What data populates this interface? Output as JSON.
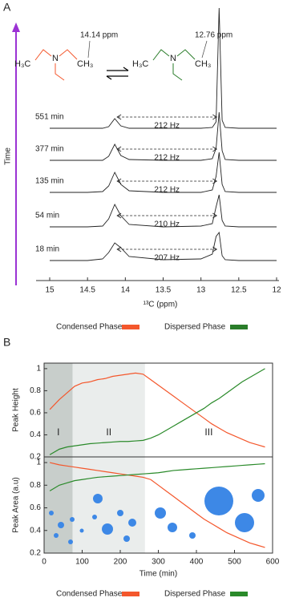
{
  "chart_data": [
    {
      "type": "spectrum",
      "panel_label": "A",
      "x_label": "¹³C (ppm)",
      "y_label": "Time",
      "xlim": [
        15,
        12
      ],
      "xticks": [
        15,
        14.5,
        14,
        13.5,
        13,
        12.5,
        12
      ],
      "molecule_labels": {
        "left": "H₃C",
        "center": "N",
        "right": "CH₃"
      },
      "annotations": [
        {
          "text": "14.14 ppm",
          "x": 14.14
        },
        {
          "text": "12.76 ppm",
          "x": 12.76
        }
      ],
      "legend": [
        {
          "name": "Condensed Phase",
          "color": "#f4572c"
        },
        {
          "name": "Dispersed Phase",
          "color": "#2a7d2a"
        }
      ],
      "x": [
        15,
        14.5,
        14.3,
        14.22,
        14.14,
        14.06,
        13.95,
        13.5,
        13,
        12.85,
        12.8,
        12.76,
        12.72,
        12.68,
        12.5,
        12
      ],
      "series": [
        {
          "name": "551 min",
          "color": "#222222",
          "splitting_label": "212 Hz",
          "values": [
            0,
            0,
            0,
            2,
            12,
            3,
            0,
            0,
            0,
            1,
            8,
            150,
            10,
            1,
            0,
            0
          ]
        },
        {
          "name": "377 min",
          "color": "#222222",
          "splitting_label": "212 Hz",
          "values": [
            0,
            0,
            0,
            5,
            20,
            6,
            1,
            0,
            0,
            2,
            15,
            60,
            12,
            1,
            0,
            0
          ]
        },
        {
          "name": "135 min",
          "color": "#222222",
          "splitting_label": "212 Hz",
          "values": [
            0,
            0,
            1,
            8,
            25,
            10,
            2,
            0,
            0,
            3,
            20,
            50,
            10,
            1,
            0,
            0
          ]
        },
        {
          "name": "54 min",
          "color": "#222222",
          "splitting_label": "210 Hz",
          "values": [
            0,
            0,
            1,
            10,
            28,
            14,
            3,
            0,
            1,
            4,
            25,
            40,
            8,
            1,
            0,
            0
          ]
        },
        {
          "name": "18 min",
          "color": "#222222",
          "splitting_label": "207 Hz",
          "values": [
            0,
            0,
            2,
            10,
            22,
            16,
            5,
            1,
            2,
            8,
            30,
            35,
            6,
            1,
            0,
            0
          ]
        }
      ]
    },
    {
      "type": "line",
      "panel_label": "B",
      "y_label": "Peak Height",
      "xlim": [
        0,
        600
      ],
      "ylim": [
        0.2,
        1.05
      ],
      "yticks": [
        0.2,
        0.4,
        0.6,
        0.8,
        1
      ],
      "regions": [
        {
          "label": "I",
          "x": [
            0,
            75
          ],
          "color": "#c8cecb"
        },
        {
          "label": "II",
          "x": [
            75,
            265
          ],
          "color": "#eaedec"
        },
        {
          "label": "III",
          "x": [
            265,
            600
          ],
          "color": "#ffffff"
        }
      ],
      "x": [
        15,
        40,
        60,
        80,
        100,
        120,
        140,
        160,
        180,
        200,
        220,
        240,
        260,
        280,
        300,
        320,
        340,
        360,
        380,
        400,
        420,
        440,
        460,
        480,
        500,
        520,
        540,
        560,
        580
      ],
      "series": [
        {
          "name": "Condensed Phase",
          "color": "#f4572c",
          "values": [
            0.63,
            0.72,
            0.78,
            0.84,
            0.87,
            0.88,
            0.9,
            0.91,
            0.93,
            0.94,
            0.95,
            0.96,
            0.95,
            0.9,
            0.85,
            0.8,
            0.75,
            0.7,
            0.65,
            0.6,
            0.55,
            0.5,
            0.46,
            0.42,
            0.39,
            0.36,
            0.33,
            0.31,
            0.29
          ]
        },
        {
          "name": "Dispersed Phase",
          "color": "#2a8a2a",
          "values": [
            0.22,
            0.27,
            0.29,
            0.3,
            0.31,
            0.32,
            0.325,
            0.33,
            0.335,
            0.34,
            0.34,
            0.345,
            0.35,
            0.37,
            0.4,
            0.44,
            0.48,
            0.52,
            0.56,
            0.6,
            0.64,
            0.69,
            0.73,
            0.78,
            0.83,
            0.88,
            0.92,
            0.96,
            1.0
          ]
        }
      ]
    },
    {
      "type": "line",
      "y_label": "Peak Area (a.u)",
      "x_label": "Time (min)",
      "xlim": [
        0,
        600
      ],
      "xticks": [
        0,
        100,
        200,
        300,
        400,
        500,
        600
      ],
      "ylim": [
        0.2,
        1.05
      ],
      "yticks": [
        0.2,
        0.4,
        0.6,
        0.8,
        1
      ],
      "x": [
        15,
        40,
        60,
        80,
        100,
        120,
        140,
        160,
        180,
        200,
        220,
        240,
        260,
        280,
        300,
        320,
        340,
        360,
        380,
        400,
        420,
        440,
        460,
        480,
        500,
        520,
        540,
        560,
        580
      ],
      "series": [
        {
          "values": [
            1.0,
            0.98,
            0.97,
            0.96,
            0.95,
            0.94,
            0.93,
            0.92,
            0.91,
            0.9,
            0.89,
            0.88,
            0.87,
            0.85,
            0.8,
            0.75,
            0.7,
            0.65,
            0.6,
            0.55,
            0.5,
            0.46,
            0.42,
            0.38,
            0.35,
            0.32,
            0.29,
            0.27,
            0.25
          ]
        },
        {
          "values": [
            0.75,
            0.8,
            0.82,
            0.84,
            0.85,
            0.86,
            0.87,
            0.875,
            0.88,
            0.885,
            0.89,
            0.895,
            0.9,
            0.905,
            0.91,
            0.92,
            0.93,
            0.935,
            0.94,
            0.945,
            0.95,
            0.955,
            0.96,
            0.965,
            0.97,
            0.975,
            0.98,
            0.985,
            0.99
          ]
        }
      ]
    }
  ]
}
